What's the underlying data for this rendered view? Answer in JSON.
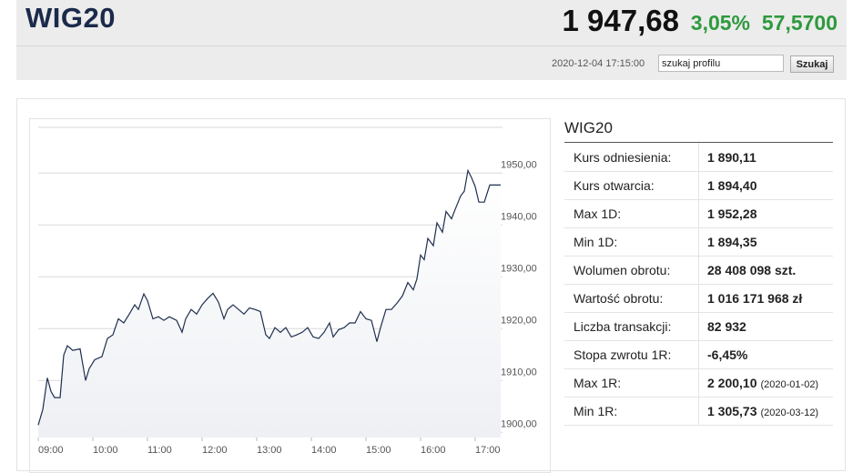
{
  "header": {
    "title": "WIG20",
    "price": "1 947,68",
    "change_pct": "3,05%",
    "change": "57,5700",
    "timestamp": "2020-12-04 17:15:00",
    "search_placeholder": "szukaj profilu",
    "search_button": "Szukaj"
  },
  "chart_data": {
    "type": "line",
    "color": "#1f2f4f",
    "area_color": "#f2f4f8",
    "grid": true,
    "x": [
      "09:00",
      "09:05",
      "09:10",
      "09:14",
      "09:18",
      "09:24",
      "09:28",
      "09:32",
      "09:38",
      "09:46",
      "09:52",
      "09:56",
      "10:02",
      "10:10",
      "10:16",
      "10:22",
      "10:28",
      "10:34",
      "10:40",
      "10:46",
      "10:50",
      "10:56",
      "11:00",
      "11:06",
      "11:12",
      "11:18",
      "11:24",
      "11:32",
      "11:38",
      "11:42",
      "11:48",
      "11:54",
      "12:00",
      "12:06",
      "12:12",
      "12:18",
      "12:24",
      "12:28",
      "12:34",
      "12:40",
      "12:46",
      "12:52",
      "12:58",
      "13:04",
      "13:10",
      "13:14",
      "13:20",
      "13:26",
      "13:32",
      "13:38",
      "13:44",
      "13:50",
      "13:56",
      "14:02",
      "14:08",
      "14:14",
      "14:20",
      "14:24",
      "14:30",
      "14:36",
      "14:42",
      "14:48",
      "14:54",
      "15:00",
      "15:06",
      "15:12",
      "15:16",
      "15:22",
      "15:28",
      "15:34",
      "15:40",
      "15:46",
      "15:52",
      "15:56",
      "16:00",
      "16:04",
      "16:08",
      "16:14",
      "16:18",
      "16:24",
      "16:28",
      "16:34",
      "16:38",
      "16:44",
      "16:48",
      "16:52",
      "16:56",
      "17:00",
      "17:04",
      "17:10",
      "17:16",
      "17:28"
    ],
    "values": [
      1901.4,
      1904.4,
      1910.5,
      1907.9,
      1906.7,
      1906.7,
      1914.9,
      1916.7,
      1915.8,
      1916.1,
      1910.0,
      1912.3,
      1914.0,
      1914.6,
      1918.1,
      1918.8,
      1921.9,
      1921.1,
      1922.8,
      1924.6,
      1923.7,
      1926.7,
      1925.4,
      1921.9,
      1922.3,
      1921.6,
      1922.3,
      1921.6,
      1919.3,
      1921.9,
      1923.7,
      1922.8,
      1924.6,
      1925.8,
      1926.8,
      1925.1,
      1921.9,
      1923.7,
      1924.6,
      1923.7,
      1922.8,
      1924.0,
      1923.7,
      1923.3,
      1918.8,
      1918.1,
      1920.2,
      1919.3,
      1920.2,
      1918.4,
      1918.8,
      1919.3,
      1920.2,
      1918.4,
      1918.1,
      1919.3,
      1921.1,
      1918.4,
      1919.8,
      1920.2,
      1921.1,
      1921.1,
      1923.3,
      1921.9,
      1921.6,
      1917.5,
      1920.2,
      1923.7,
      1923.7,
      1924.9,
      1926.3,
      1928.9,
      1927.5,
      1929.6,
      1934.2,
      1933.3,
      1937.4,
      1936.0,
      1940.4,
      1938.6,
      1942.6,
      1941.2,
      1943.0,
      1945.6,
      1946.5,
      1950.5,
      1949.1,
      1947.4,
      1944.4,
      1944.4,
      1947.7,
      1947.7
    ],
    "xlim": [
      "09:00",
      "17:30"
    ],
    "xticks": [
      "09:00",
      "10:00",
      "11:00",
      "12:00",
      "13:00",
      "14:00",
      "15:00",
      "16:00",
      "17:00"
    ],
    "ylim": [
      1899,
      1959
    ],
    "yticks": [
      {
        "value": 1900,
        "label": "1900,00"
      },
      {
        "value": 1910,
        "label": "1910,00"
      },
      {
        "value": 1920,
        "label": "1920,00"
      },
      {
        "value": 1930,
        "label": "1930,00"
      },
      {
        "value": 1940,
        "label": "1940,00"
      },
      {
        "value": 1950,
        "label": "1950,00"
      }
    ]
  },
  "table": {
    "title": "WIG20",
    "rows": [
      {
        "label": "Kurs odniesienia:",
        "value": "1 890,11"
      },
      {
        "label": "Kurs otwarcia:",
        "value": "1 894,40"
      },
      {
        "label": "Max 1D:",
        "value": "1 952,28"
      },
      {
        "label": "Min 1D:",
        "value": "1 894,35"
      },
      {
        "label": "Wolumen obrotu:",
        "value": "28 408 098 szt."
      },
      {
        "label": "Wartość obrotu:",
        "value": "1 016 171 968 zł"
      },
      {
        "label": "Liczba transakcji:",
        "value": "82 932"
      },
      {
        "label": "Stopa zwrotu 1R:",
        "value": "-6,45%"
      },
      {
        "label": "Max 1R:",
        "value": "2 200,10",
        "note": "(2020-01-02)"
      },
      {
        "label": "Min 1R:",
        "value": "1 305,73",
        "note": "(2020-03-12)"
      }
    ]
  }
}
